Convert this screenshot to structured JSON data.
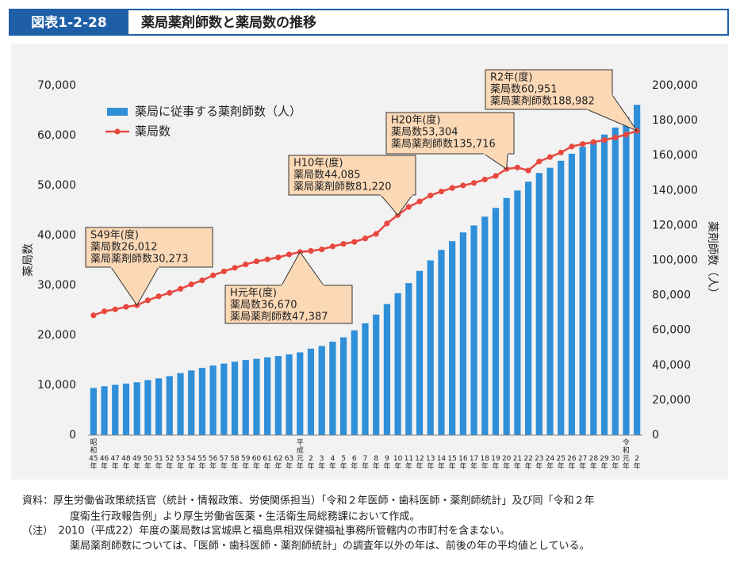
{
  "header": {
    "label": "図表1-2-28",
    "title": "薬局薬剤師数と薬局数の推移"
  },
  "chart_data": {
    "type": "bar_line",
    "categories": [
      "昭和45年",
      "46年",
      "47年",
      "48年",
      "49年",
      "50年",
      "51年",
      "52年",
      "53年",
      "54年",
      "55年",
      "56年",
      "57年",
      "58年",
      "59年",
      "60年",
      "61年",
      "62年",
      "63年",
      "平成元年",
      "2年",
      "3年",
      "4年",
      "5年",
      "6年",
      "7年",
      "8年",
      "9年",
      "10年",
      "11年",
      "12年",
      "13年",
      "14年",
      "15年",
      "16年",
      "17年",
      "18年",
      "19年",
      "20年",
      "21年",
      "22年",
      "23年",
      "24年",
      "25年",
      "26年",
      "27年",
      "28年",
      "29年",
      "30年",
      "令和元年",
      "2年"
    ],
    "series": [
      {
        "name": "薬局に従事する薬剤師数（人）",
        "type": "bar",
        "axis": "y2",
        "color": "#2f8fd8",
        "values": [
          27000,
          28000,
          28800,
          29500,
          30273,
          31500,
          32500,
          33800,
          35500,
          37000,
          38500,
          39800,
          41000,
          42000,
          43000,
          43700,
          44500,
          45300,
          46200,
          47387,
          49500,
          51000,
          53500,
          56000,
          60000,
          64000,
          69000,
          75000,
          81220,
          87000,
          94000,
          100000,
          106000,
          111000,
          116000,
          120000,
          125000,
          130000,
          135716,
          140000,
          145000,
          150000,
          153000,
          157000,
          161000,
          165000,
          168000,
          172000,
          176000,
          182000,
          188982
        ]
      },
      {
        "name": "薬局数",
        "type": "line",
        "color": "#e8483f",
        "values": [
          24000,
          24800,
          25200,
          25700,
          26012,
          27000,
          27800,
          28500,
          29300,
          30200,
          31000,
          32000,
          32800,
          33500,
          34200,
          34800,
          35200,
          35600,
          36200,
          36670,
          36900,
          37200,
          37800,
          38300,
          38700,
          39400,
          40300,
          42400,
          44085,
          45700,
          46800,
          48000,
          48800,
          49500,
          50000,
          50500,
          51200,
          51900,
          53304,
          53600,
          53000,
          54800,
          55700,
          56600,
          57800,
          58300,
          58700,
          59100,
          59600,
          60200,
          60951
        ]
      }
    ],
    "ylabel": "薬局数",
    "y2label": "薬剤師数（人）",
    "ylim": [
      0,
      70000
    ],
    "yticks": [
      0,
      {
        "value": 10000,
        "label": "10,000"
      },
      {
        "value": 20000,
        "label": "20,000"
      },
      {
        "value": 30000,
        "label": "30,000"
      },
      {
        "value": 40000,
        "label": "40,000"
      },
      {
        "value": 50000,
        "label": "50,000"
      },
      {
        "value": 60000,
        "label": "60,000"
      },
      {
        "value": 70000,
        "label": "70,000"
      }
    ],
    "y2lim": [
      0,
      200000
    ],
    "y2ticks": [
      0,
      {
        "value": 20000,
        "label": "20,000"
      },
      {
        "value": 40000,
        "label": "40,000"
      },
      {
        "value": 60000,
        "label": "60,000"
      },
      {
        "value": 80000,
        "label": "80,000"
      },
      {
        "value": 100000,
        "label": "100,000"
      },
      {
        "value": 120000,
        "label": "120,000"
      },
      {
        "value": 140000,
        "label": "140,000"
      },
      {
        "value": 160000,
        "label": "160,000"
      },
      {
        "value": 180000,
        "label": "180,000"
      },
      {
        "value": 200000,
        "label": "200,000"
      }
    ],
    "annotations": [
      {
        "lines": [
          "S49年(度)",
          "薬局数26,012",
          "薬局薬剤師数30,273"
        ]
      },
      {
        "lines": [
          "H元年(度)",
          "薬局数36,670",
          "薬局薬剤師数47,387"
        ]
      },
      {
        "lines": [
          "H10年(度)",
          "薬局数44,085",
          "薬局薬剤師数81,220"
        ]
      },
      {
        "lines": [
          "H20年(度)",
          "薬局数53,304",
          "薬局薬剤師数135,716"
        ]
      },
      {
        "lines": [
          "R2年(度)",
          "薬局数60,951",
          "薬局薬剤師数188,982"
        ]
      }
    ]
  },
  "notes": [
    "資料：厚生労働省政策統括官（統計・情報政策、労使関係担当）「令和２年医師・歯科医師・薬剤師統計」及び同「令和２年",
    "度衛生行政報告例」より厚生労働省医薬・生活衛生局総務課において作成。",
    "（注）　2010（平成22）年度の薬局数は宮城県と福島県相双保健福祉事務所管轄内の市町村を含まない。",
    "薬局薬剤師数については、「医師・歯科医師・薬剤師統計」の調査年以外の年は、前後の年の平均値としている。"
  ]
}
